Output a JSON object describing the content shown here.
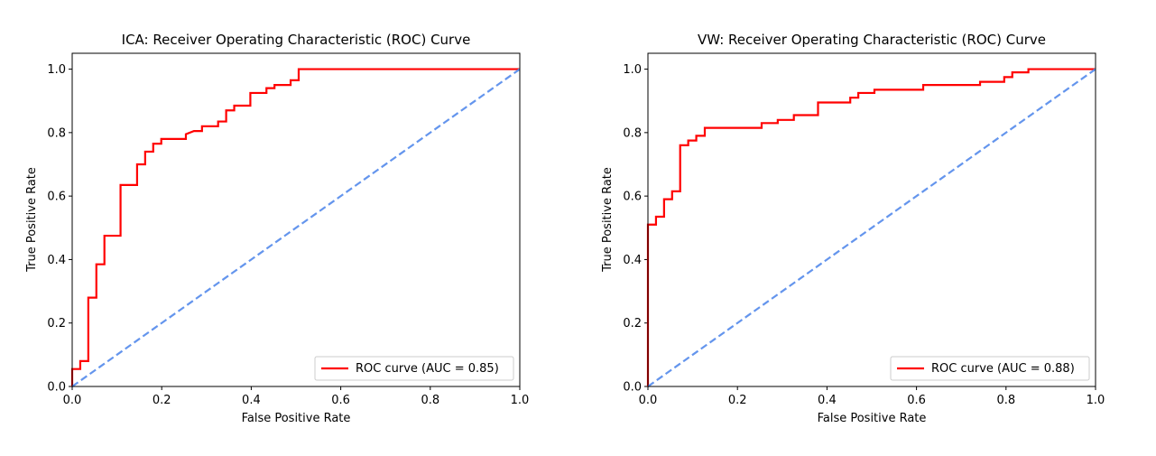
{
  "chart_data": [
    {
      "type": "line",
      "title": "ICA: Receiver Operating Characteristic (ROC) Curve",
      "xlabel": "False Positive Rate",
      "ylabel": "True Positive Rate",
      "xlim": [
        0,
        1
      ],
      "ylim": [
        0,
        1.05
      ],
      "xticks": [
        "0.0",
        "0.2",
        "0.4",
        "0.6",
        "0.8",
        "1.0"
      ],
      "yticks": [
        "0.0",
        "0.2",
        "0.4",
        "0.6",
        "0.8",
        "1.0"
      ],
      "grid": false,
      "legend_position": "lower-right",
      "series": [
        {
          "name": "ROC curve (AUC = 0.85)",
          "color": "#ff0000",
          "style": "solid",
          "x": [
            0,
            0,
            0.018,
            0.018,
            0.036,
            0.036,
            0.054,
            0.054,
            0.072,
            0.072,
            0.108,
            0.108,
            0.145,
            0.145,
            0.163,
            0.163,
            0.181,
            0.181,
            0.199,
            0.199,
            0.254,
            0.254,
            0.272,
            0.29,
            0.29,
            0.326,
            0.326,
            0.344,
            0.344,
            0.362,
            0.362,
            0.398,
            0.398,
            0.434,
            0.434,
            0.452,
            0.452,
            0.488,
            0.488,
            0.506,
            0.506,
            1.0
          ],
          "y": [
            0,
            0.055,
            0.055,
            0.08,
            0.08,
            0.28,
            0.28,
            0.385,
            0.385,
            0.475,
            0.475,
            0.635,
            0.635,
            0.7,
            0.7,
            0.74,
            0.74,
            0.765,
            0.765,
            0.78,
            0.78,
            0.795,
            0.805,
            0.805,
            0.82,
            0.82,
            0.835,
            0.835,
            0.87,
            0.87,
            0.885,
            0.885,
            0.925,
            0.925,
            0.94,
            0.94,
            0.95,
            0.95,
            0.965,
            0.965,
            1.0,
            1.0
          ]
        },
        {
          "color": "#6495ed",
          "style": "dashed",
          "x": [
            0,
            1
          ],
          "y": [
            0,
            1
          ]
        }
      ]
    },
    {
      "type": "line",
      "title": "VW: Receiver Operating Characteristic (ROC) Curve",
      "xlabel": "False Positive Rate",
      "ylabel": "True Positive Rate",
      "xlim": [
        0,
        1
      ],
      "ylim": [
        0,
        1.05
      ],
      "xticks": [
        "0.0",
        "0.2",
        "0.4",
        "0.6",
        "0.8",
        "1.0"
      ],
      "yticks": [
        "0.0",
        "0.2",
        "0.4",
        "0.6",
        "0.8",
        "1.0"
      ],
      "grid": false,
      "legend_position": "lower-right",
      "series": [
        {
          "name": "ROC curve (AUC = 0.88)",
          "color": "#ff0000",
          "style": "solid",
          "x": [
            0,
            0,
            0.018,
            0.018,
            0.036,
            0.036,
            0.054,
            0.054,
            0.072,
            0.072,
            0.09,
            0.09,
            0.108,
            0.108,
            0.127,
            0.127,
            0.254,
            0.254,
            0.29,
            0.29,
            0.326,
            0.326,
            0.38,
            0.38,
            0.452,
            0.452,
            0.47,
            0.47,
            0.506,
            0.506,
            0.615,
            0.615,
            0.742,
            0.742,
            0.796,
            0.796,
            0.814,
            0.814,
            0.85,
            0.85,
            1.0
          ],
          "y": [
            0,
            0.51,
            0.51,
            0.535,
            0.535,
            0.59,
            0.59,
            0.615,
            0.615,
            0.76,
            0.76,
            0.775,
            0.775,
            0.79,
            0.79,
            0.815,
            0.815,
            0.83,
            0.83,
            0.84,
            0.84,
            0.855,
            0.855,
            0.895,
            0.895,
            0.91,
            0.91,
            0.925,
            0.925,
            0.935,
            0.935,
            0.95,
            0.95,
            0.96,
            0.96,
            0.975,
            0.975,
            0.99,
            0.99,
            1.0,
            1.0
          ]
        },
        {
          "color": "#6495ed",
          "style": "dashed",
          "x": [
            0,
            1
          ],
          "y": [
            0,
            1
          ]
        }
      ]
    }
  ]
}
